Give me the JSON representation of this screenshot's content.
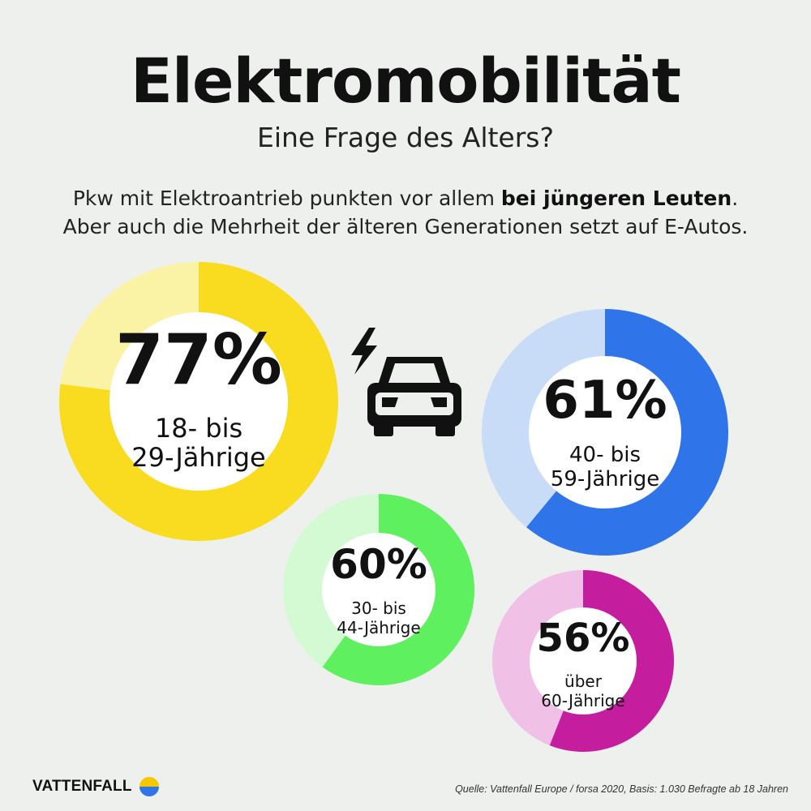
{
  "header": {
    "title": "Elektromobilität",
    "subtitle": "Eine Frage des Alters?",
    "intro_a": "Pkw mit Elektroantrieb punkten vor allem ",
    "intro_bold": "bei jüngeren Leuten",
    "intro_b": ".",
    "intro_line2": "Aber auch die Mehrheit der älteren Generationen setzt auf E-Autos."
  },
  "chart_data": {
    "type": "pie",
    "unit": "%",
    "series": [
      {
        "name": "18- bis 29-Jährige",
        "value_label": "77%",
        "label_lines": [
          "18- bis",
          "29-Jährige"
        ],
        "value": 77,
        "color": "#f9dc1f",
        "track_color": "#faf3a6"
      },
      {
        "name": "40- bis 59-Jährige",
        "value_label": "61%",
        "label_lines": [
          "40- bis",
          "59-Jährige"
        ],
        "value": 61,
        "color": "#2f74e8",
        "track_color": "#c8dcf8"
      },
      {
        "name": "30- bis 44-Jährige",
        "value_label": "60%",
        "label_lines": [
          "30- bis",
          "44-Jährige"
        ],
        "value": 60,
        "color": "#5ef05e",
        "track_color": "#d3fad3"
      },
      {
        "name": "über 60-Jährige",
        "value_label": "56%",
        "label_lines": [
          "über",
          "60-Jährige"
        ],
        "value": 56,
        "color": "#c41e9e",
        "track_color": "#f0c0e6"
      }
    ]
  },
  "icons": {
    "car": "electric-car-icon",
    "logo": "vattenfall-logo-icon"
  },
  "footer": {
    "brand": "VATTENFALL",
    "source": "Quelle: Vattenfall Europe / forsa 2020, Basis: 1.030 Befragte ab 18 Jahren"
  }
}
